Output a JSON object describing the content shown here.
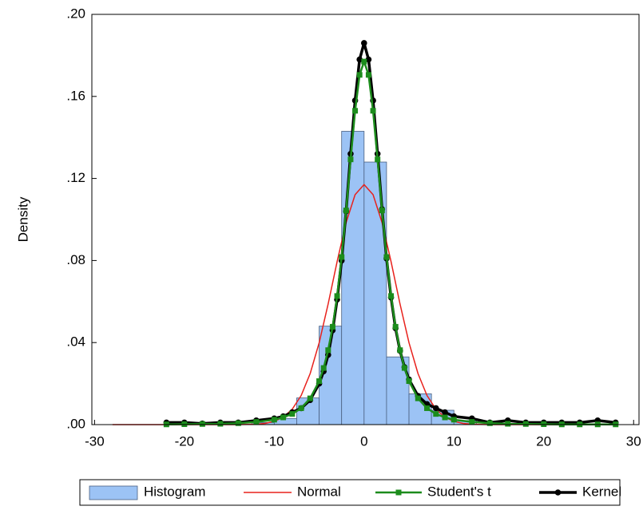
{
  "chart_data": {
    "type": "histogram",
    "y_label": "Density",
    "name": "Histogram",
    "color": "#9cc3f5",
    "bins": [
      -12.5,
      -10,
      -7.5,
      -5,
      -2.5,
      0,
      2.5,
      5,
      7.5,
      10,
      12.5
    ],
    "values": [
      0.001,
      0.003,
      0.013,
      0.048,
      0.143,
      0.128,
      0.033,
      0.015,
      0.007,
      0.002
    ],
    "xlim": [
      -30.3,
      30.6
    ],
    "ylim": [
      0,
      0.2
    ],
    "xticks": [
      -30,
      -20,
      -10,
      0,
      10,
      20,
      30
    ],
    "yticks": [
      {
        "value": 0,
        "label": ".00"
      },
      {
        "value": 0.04,
        "label": ".04"
      },
      {
        "value": 0.08,
        "label": ".08"
      },
      {
        "value": 0.12,
        "label": ".12"
      },
      {
        "value": 0.16,
        "label": ".16"
      },
      {
        "value": 0.2,
        "label": ".20"
      }
    ],
    "series": [
      {
        "name": "Normal",
        "type": "line",
        "color": "#e8211c",
        "marker": "none",
        "x": [
          -28,
          -14,
          -13,
          -12,
          -11,
          -10,
          -9,
          -8,
          -7,
          -6,
          -5,
          -4,
          -3,
          -2,
          -1,
          0,
          1,
          2,
          3,
          4,
          5,
          6,
          7,
          8,
          9,
          10,
          11,
          12,
          13,
          14,
          28
        ],
        "values": [
          0,
          0,
          0.0001,
          0.0002,
          0.0006,
          0.0016,
          0.0036,
          0.0075,
          0.0142,
          0.0249,
          0.0399,
          0.0588,
          0.0795,
          0.0985,
          0.1121,
          0.117,
          0.1121,
          0.0985,
          0.0795,
          0.0588,
          0.0399,
          0.0249,
          0.0142,
          0.0075,
          0.0036,
          0.0016,
          0.0006,
          0.0002,
          0.0001,
          0,
          0
        ]
      },
      {
        "name": "Student's t",
        "type": "line",
        "color": "#1c8c1c",
        "marker": "square",
        "x": [
          -22,
          -20,
          -18,
          -16,
          -14,
          -12,
          -10,
          -9,
          -8,
          -7,
          -6,
          -5,
          -4.5,
          -4,
          -3.5,
          -3,
          -2.5,
          -2,
          -1.5,
          -1,
          -0.5,
          0,
          0.5,
          1,
          1.5,
          2,
          2.5,
          3,
          3.5,
          4,
          4.5,
          5,
          6,
          7,
          8,
          9,
          10,
          12,
          14,
          16,
          18,
          20,
          22,
          24,
          26,
          28
        ],
        "values": [
          0.0001,
          0.0002,
          0.0003,
          0.0004,
          0.0007,
          0.0013,
          0.0024,
          0.0035,
          0.0052,
          0.008,
          0.0128,
          0.0212,
          0.0276,
          0.0363,
          0.0477,
          0.0627,
          0.0817,
          0.1044,
          0.1293,
          0.153,
          0.1705,
          0.177,
          0.1705,
          0.153,
          0.1293,
          0.1044,
          0.0817,
          0.0627,
          0.0477,
          0.0363,
          0.0276,
          0.0212,
          0.0128,
          0.008,
          0.0052,
          0.0035,
          0.0024,
          0.0013,
          0.0007,
          0.0004,
          0.0003,
          0.0002,
          0.0001,
          0.0001,
          0.0001,
          0.0001
        ]
      },
      {
        "name": "Kernel",
        "type": "line",
        "color": "#000000",
        "marker": "circle",
        "x": [
          -22,
          -20,
          -18,
          -16,
          -14,
          -12,
          -10,
          -9,
          -8,
          -7,
          -6,
          -5,
          -4.5,
          -4,
          -3.5,
          -3,
          -2.5,
          -2,
          -1.5,
          -1,
          -0.5,
          0,
          0.5,
          1,
          1.5,
          2,
          2.5,
          3,
          3.5,
          4,
          4.5,
          5,
          6,
          7,
          8,
          9,
          10,
          12,
          14,
          16,
          18,
          20,
          22,
          24,
          26,
          28
        ],
        "values": [
          0.001,
          0.001,
          0.0005,
          0.001,
          0.001,
          0.002,
          0.003,
          0.004,
          0.006,
          0.008,
          0.012,
          0.02,
          0.026,
          0.034,
          0.046,
          0.061,
          0.08,
          0.104,
          0.132,
          0.158,
          0.178,
          0.186,
          0.178,
          0.158,
          0.132,
          0.105,
          0.081,
          0.062,
          0.047,
          0.036,
          0.028,
          0.022,
          0.014,
          0.01,
          0.008,
          0.006,
          0.004,
          0.003,
          0.001,
          0.002,
          0.001,
          0.001,
          0.001,
          0.001,
          0.002,
          0.001
        ]
      }
    ]
  }
}
